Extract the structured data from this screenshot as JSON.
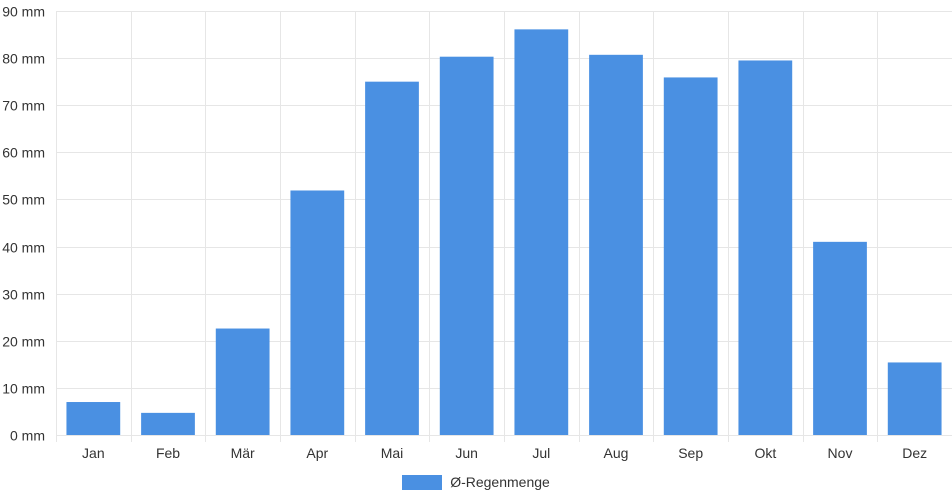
{
  "chart_data": {
    "type": "bar",
    "categories": [
      "Jan",
      "Feb",
      "Mär",
      "Apr",
      "Mai",
      "Jun",
      "Jul",
      "Aug",
      "Sep",
      "Okt",
      "Nov",
      "Dez"
    ],
    "series": [
      {
        "name": "Ø-Regenmenge",
        "values": [
          7,
          4.7,
          22.6,
          51.9,
          75,
          80.3,
          86.1,
          80.7,
          75.9,
          79.5,
          41,
          15.4
        ],
        "color": "#4a90e2"
      }
    ],
    "ylim": [
      0,
      90
    ],
    "yticks": [
      0,
      10,
      20,
      30,
      40,
      50,
      60,
      70,
      80,
      90
    ],
    "ytick_labels": [
      "0 mm",
      "10 mm",
      "20 mm",
      "30 mm",
      "40 mm",
      "50 mm",
      "60 mm",
      "70 mm",
      "80 mm",
      "90 mm"
    ],
    "grid": true,
    "legend_position": "bottom-center"
  }
}
